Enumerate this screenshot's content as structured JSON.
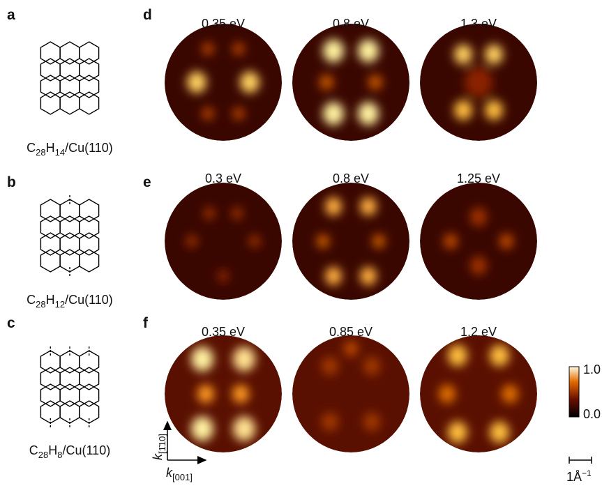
{
  "molecules": [
    {
      "label": "a",
      "formula": {
        "c": "C",
        "cn": "28",
        "h": "H",
        "hn": "14",
        "surface": "/Cu(110)"
      }
    },
    {
      "label": "b",
      "formula": {
        "c": "C",
        "cn": "28",
        "h": "H",
        "hn": "12",
        "surface": "/Cu(110)"
      }
    },
    {
      "label": "c",
      "formula": {
        "c": "C",
        "cn": "28",
        "h": "H",
        "hn": "8",
        "surface": "/Cu(110)"
      }
    }
  ],
  "maps": [
    {
      "label": "d",
      "energies": [
        "0.35 eV",
        "0.8 eV",
        "1.3 eV"
      ]
    },
    {
      "label": "e",
      "energies": [
        "0.3 eV",
        "0.8 eV",
        "1.25 eV"
      ]
    },
    {
      "label": "f",
      "energies": [
        "0.35 eV",
        "0.85 eV",
        "1.2 eV"
      ]
    }
  ],
  "colorbar": {
    "max": "1.0",
    "min": "0.0"
  },
  "axes": {
    "k": "k",
    "vertical_sub": "[1̄10]",
    "horizontal_sub": "[001]"
  },
  "scale_bar": {
    "text": "1Å",
    "sup": "−1"
  }
}
